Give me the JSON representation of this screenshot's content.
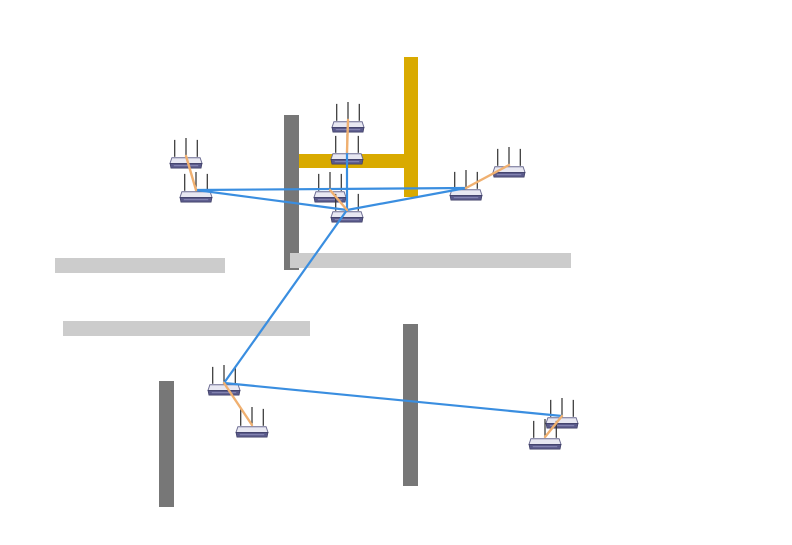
{
  "diagram": {
    "type": "wireless-mesh-network",
    "colors": {
      "background": "#ffffff",
      "obstacle_dark": "#777777",
      "obstacle_light": "#cccccc",
      "obstacle_gold": "#d9aa00",
      "backbone_link": "#3a8ee0",
      "client_link": "#f0b070",
      "router_body": "#5a5a8a",
      "router_top": "#e8e8f2",
      "router_antenna": "#333333"
    },
    "icons": {
      "node": "wireless-router-icon"
    },
    "obstacles": [
      {
        "id": "gold-post",
        "color_key": "obstacle_gold"
      },
      {
        "id": "gold-beam",
        "color_key": "obstacle_gold"
      },
      {
        "id": "dark-wall-top",
        "color_key": "obstacle_dark"
      },
      {
        "id": "light-wall-center",
        "color_key": "obstacle_light"
      },
      {
        "id": "light-wall-left-upper",
        "color_key": "obstacle_light"
      },
      {
        "id": "light-wall-left-lower",
        "color_key": "obstacle_light"
      },
      {
        "id": "dark-wall-bottom-left",
        "color_key": "obstacle_dark"
      },
      {
        "id": "dark-wall-bottom-center",
        "color_key": "obstacle_dark"
      }
    ],
    "nodes": [
      {
        "id": "r1",
        "role": "client"
      },
      {
        "id": "r2",
        "role": "access-point"
      },
      {
        "id": "r3",
        "role": "client"
      },
      {
        "id": "r4",
        "role": "access-point"
      },
      {
        "id": "r5",
        "role": "client"
      },
      {
        "id": "r6",
        "role": "access-point"
      },
      {
        "id": "r7",
        "role": "access-point"
      },
      {
        "id": "r8",
        "role": "client"
      },
      {
        "id": "r9",
        "role": "access-point"
      },
      {
        "id": "r10",
        "role": "client"
      },
      {
        "id": "r11",
        "role": "access-point"
      },
      {
        "id": "r12",
        "role": "client"
      }
    ],
    "links": [
      {
        "from": "r2",
        "to": "r6",
        "kind": "backbone"
      },
      {
        "from": "r2",
        "to": "r9",
        "kind": "backbone"
      },
      {
        "from": "r6",
        "to": "r9",
        "kind": "backbone"
      },
      {
        "from": "r6",
        "to": "r7",
        "kind": "backbone"
      },
      {
        "from": "r7",
        "to": "r11",
        "kind": "backbone"
      },
      {
        "from": "r4",
        "to": "r6",
        "kind": "backbone"
      },
      {
        "from": "r1",
        "to": "r2",
        "kind": "client"
      },
      {
        "from": "r3",
        "to": "r4",
        "kind": "client"
      },
      {
        "from": "r5",
        "to": "r6",
        "kind": "client"
      },
      {
        "from": "r7",
        "to": "r8",
        "kind": "client"
      },
      {
        "from": "r9",
        "to": "r10",
        "kind": "client"
      },
      {
        "from": "r11",
        "to": "r12",
        "kind": "client"
      }
    ]
  }
}
